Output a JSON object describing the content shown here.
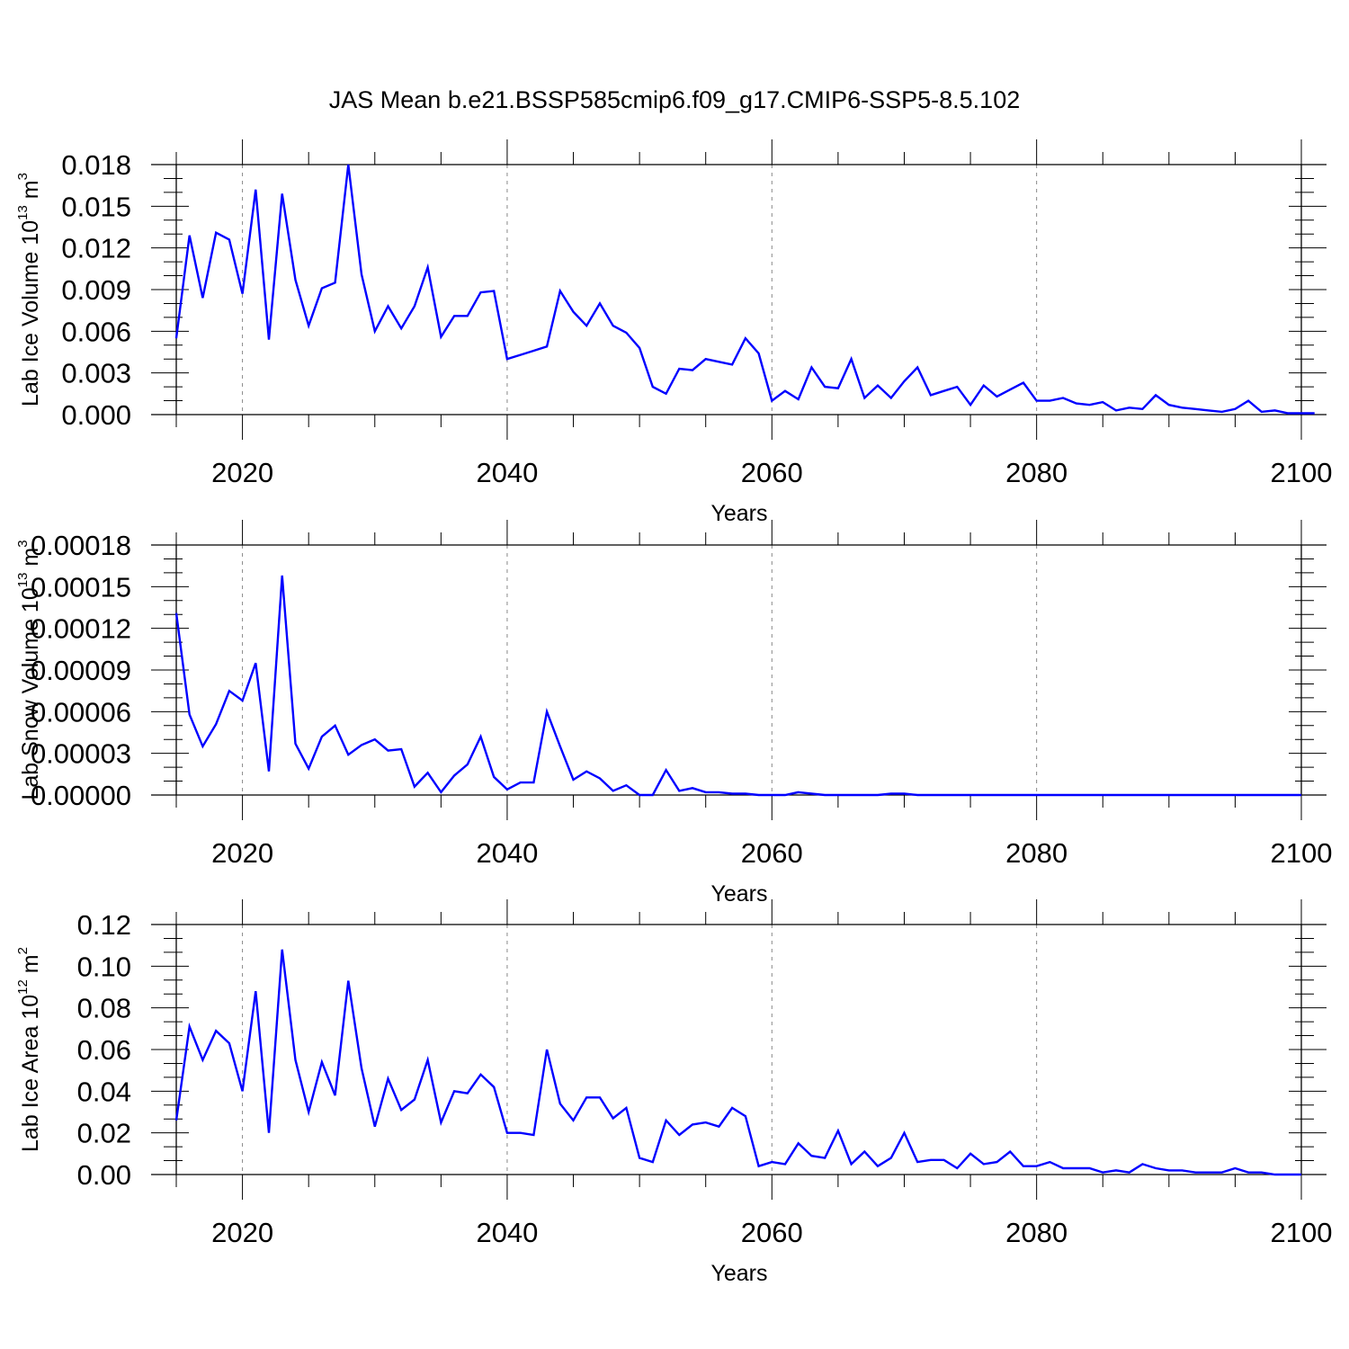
{
  "figure": {
    "title": "JAS Mean b.e21.BSSP585cmip6.f09_g17.CMIP6-SSP5-8.5.102"
  },
  "colors": {
    "line": "#0000ff",
    "axis": "#000000",
    "grid": "#888888"
  },
  "chart_data": [
    {
      "type": "line",
      "ylabel": {
        "base": "Lab Ice Volume 10",
        "exponent": "13",
        "unit": " m",
        "unit_exponent": "3"
      },
      "xlabel": "Years",
      "xlim": [
        2015,
        2100
      ],
      "ylim": [
        0,
        0.018
      ],
      "yticks": [
        0,
        0.003,
        0.006,
        0.009,
        0.012,
        0.015,
        0.018
      ],
      "ytick_labels": [
        "0.000",
        "0.003",
        "0.006",
        "0.009",
        "0.012",
        "0.015",
        "0.018"
      ],
      "xticks": [
        2020,
        2040,
        2060,
        2080,
        2100
      ],
      "xtick_labels": [
        "2020",
        "2040",
        "2060",
        "2080",
        "2100"
      ],
      "grid_x": [
        2020,
        2040,
        2060,
        2080
      ],
      "series": [
        {
          "x_start": 2015,
          "values": [
            0.0055,
            0.0129,
            0.0084,
            0.0131,
            0.0126,
            0.0087,
            0.0162,
            0.0054,
            0.0159,
            0.0097,
            0.0064,
            0.0091,
            0.0095,
            0.018,
            0.0101,
            0.006,
            0.0078,
            0.0062,
            0.0078,
            0.0106,
            0.0056,
            0.0071,
            0.0071,
            0.0088,
            0.0089,
            0.004,
            0.0043,
            0.0046,
            0.0049,
            0.0089,
            0.0074,
            0.0064,
            0.008,
            0.0064,
            0.0059,
            0.0048,
            0.002,
            0.0015,
            0.0033,
            0.0032,
            0.004,
            0.0038,
            0.0036,
            0.0055,
            0.0044,
            0.001,
            0.0017,
            0.0011,
            0.0034,
            0.002,
            0.0019,
            0.004,
            0.0012,
            0.0021,
            0.0012,
            0.0024,
            0.0034,
            0.0014,
            0.0017,
            0.002,
            0.0007,
            0.0021,
            0.0013,
            0.0018,
            0.0023,
            0.001,
            0.001,
            0.0012,
            0.0008,
            0.0007,
            0.0009,
            0.0003,
            0.0005,
            0.0004,
            0.0014,
            0.0007,
            0.0005,
            0.0004,
            0.0003,
            0.0002,
            0.0004,
            0.001,
            0.0002,
            0.0003,
            0.0001,
            0.0001,
            0.0001
          ]
        }
      ]
    },
    {
      "type": "line",
      "ylabel": {
        "base": "Lab Snow Volume 10",
        "exponent": "13",
        "unit": " m",
        "unit_exponent": "3"
      },
      "xlabel": "Years",
      "xlim": [
        2015,
        2100
      ],
      "ylim": [
        0,
        0.00018
      ],
      "yticks": [
        0,
        3e-05,
        6e-05,
        9e-05,
        0.00012,
        0.00015,
        0.00018
      ],
      "ytick_labels": [
        "0.00000",
        "0.00003",
        "0.00006",
        "0.00009",
        "0.00012",
        "0.00015",
        "0.00018"
      ],
      "xticks": [
        2020,
        2040,
        2060,
        2080,
        2100
      ],
      "xtick_labels": [
        "2020",
        "2040",
        "2060",
        "2080",
        "2100"
      ],
      "grid_x": [
        2020,
        2040,
        2060,
        2080
      ],
      "series": [
        {
          "x_start": 2015,
          "values": [
            0.000131,
            5.8e-05,
            3.5e-05,
            5.1e-05,
            7.5e-05,
            6.8e-05,
            9.5e-05,
            1.7e-05,
            0.000158,
            3.7e-05,
            1.9e-05,
            4.2e-05,
            5e-05,
            2.9e-05,
            3.6e-05,
            4e-05,
            3.2e-05,
            3.3e-05,
            6e-06,
            1.6e-05,
            2e-06,
            1.4e-05,
            2.2e-05,
            4.2e-05,
            1.3e-05,
            4e-06,
            9e-06,
            9e-06,
            6e-05,
            3.5e-05,
            1.1e-05,
            1.7e-05,
            1.2e-05,
            3e-06,
            7e-06,
            0.0,
            0.0,
            1.8e-05,
            3e-06,
            5e-06,
            2e-06,
            2e-06,
            1e-06,
            1e-06,
            0.0,
            0.0,
            0.0,
            2e-06,
            1e-06,
            0.0,
            0.0,
            0.0,
            0.0,
            0.0,
            1e-06,
            1e-06,
            0.0,
            0.0,
            0.0,
            0.0,
            0.0,
            0.0,
            0.0,
            0.0,
            0.0,
            0.0,
            0.0,
            0.0,
            0.0,
            0.0,
            0.0,
            0.0,
            0.0,
            0.0,
            0.0,
            0.0,
            0.0,
            0.0,
            0.0,
            0.0,
            0.0,
            0.0,
            0.0,
            0.0,
            0.0,
            0.0
          ]
        }
      ]
    },
    {
      "type": "line",
      "ylabel": {
        "base": "Lab Ice Area 10",
        "exponent": "12",
        "unit": " m",
        "unit_exponent": "2"
      },
      "xlabel": "Years",
      "xlim": [
        2015,
        2100
      ],
      "ylim": [
        0,
        0.12
      ],
      "yticks": [
        0,
        0.02,
        0.04,
        0.06,
        0.08,
        0.1,
        0.12
      ],
      "ytick_labels": [
        "0.00",
        "0.02",
        "0.04",
        "0.06",
        "0.08",
        "0.10",
        "0.12"
      ],
      "xticks": [
        2020,
        2040,
        2060,
        2080,
        2100
      ],
      "xtick_labels": [
        "2020",
        "2040",
        "2060",
        "2080",
        "2100"
      ],
      "grid_x": [
        2020,
        2040,
        2060,
        2080
      ],
      "series": [
        {
          "x_start": 2015,
          "values": [
            0.026,
            0.071,
            0.055,
            0.069,
            0.063,
            0.04,
            0.088,
            0.02,
            0.108,
            0.055,
            0.03,
            0.054,
            0.038,
            0.093,
            0.051,
            0.023,
            0.046,
            0.031,
            0.036,
            0.055,
            0.025,
            0.04,
            0.039,
            0.048,
            0.042,
            0.02,
            0.02,
            0.019,
            0.06,
            0.034,
            0.026,
            0.037,
            0.037,
            0.027,
            0.032,
            0.008,
            0.006,
            0.026,
            0.019,
            0.024,
            0.025,
            0.023,
            0.032,
            0.028,
            0.004,
            0.006,
            0.005,
            0.015,
            0.009,
            0.008,
            0.021,
            0.005,
            0.011,
            0.004,
            0.008,
            0.02,
            0.006,
            0.007,
            0.007,
            0.003,
            0.01,
            0.005,
            0.006,
            0.011,
            0.004,
            0.004,
            0.006,
            0.003,
            0.003,
            0.003,
            0.001,
            0.002,
            0.001,
            0.005,
            0.003,
            0.002,
            0.002,
            0.001,
            0.001,
            0.001,
            0.003,
            0.001,
            0.001,
            0.0,
            0.0,
            0.0
          ]
        }
      ]
    }
  ]
}
